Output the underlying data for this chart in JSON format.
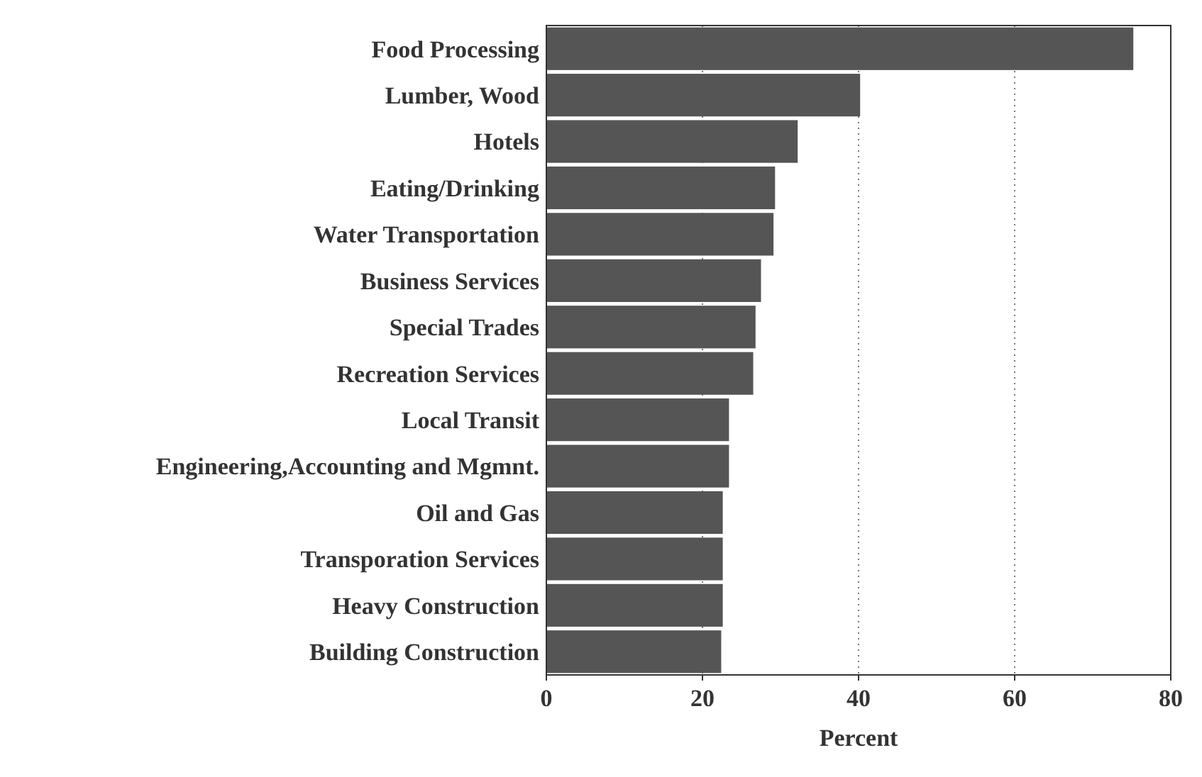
{
  "chart_data": {
    "type": "bar",
    "orientation": "horizontal",
    "xlabel": "Percent",
    "categories": [
      "Food Processing",
      "Lumber, Wood",
      "Hotels",
      "Eating/Drinking",
      "Water Transportation",
      "Business Services",
      "Special Trades",
      "Recreation Services",
      "Local Transit",
      "Engineering,Accounting and Mgmnt.",
      "Oil and Gas",
      "Transporation Services",
      "Heavy Construction",
      "Building Construction"
    ],
    "values": [
      75.2,
      40.2,
      32.2,
      29.3,
      29.1,
      27.5,
      26.8,
      26.5,
      23.4,
      23.4,
      22.6,
      22.6,
      22.6,
      22.4
    ],
    "color": "#555555",
    "xlim": [
      0,
      80
    ],
    "xticks": [
      0,
      20,
      40,
      60,
      80
    ],
    "grid": "x"
  }
}
